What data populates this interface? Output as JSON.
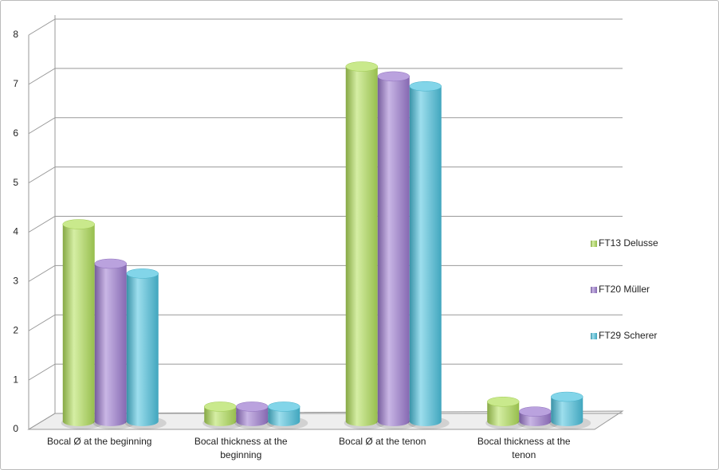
{
  "chart_data": {
    "type": "bar",
    "categories": [
      "Bocal Ø at the beginning",
      "Bocal thickness at the beginning",
      "Bocal Ø at the tenon",
      "Bocal thickness at the tenon"
    ],
    "series": [
      {
        "name": "FT13 Delusse",
        "color": "#b2e05a",
        "values": [
          4.0,
          0.3,
          7.2,
          0.4
        ]
      },
      {
        "name": "FT20 Müller",
        "color": "#9d7ad0",
        "values": [
          3.2,
          0.3,
          7.0,
          0.2
        ]
      },
      {
        "name": "FT29 Scherer",
        "color": "#4cc3df",
        "values": [
          3.0,
          0.3,
          6.8,
          0.5
        ]
      }
    ],
    "ylim": [
      0,
      8
    ],
    "yticks": [
      0,
      1,
      2,
      3,
      4,
      5,
      6,
      7,
      8
    ],
    "grid": true,
    "legend": "right"
  }
}
